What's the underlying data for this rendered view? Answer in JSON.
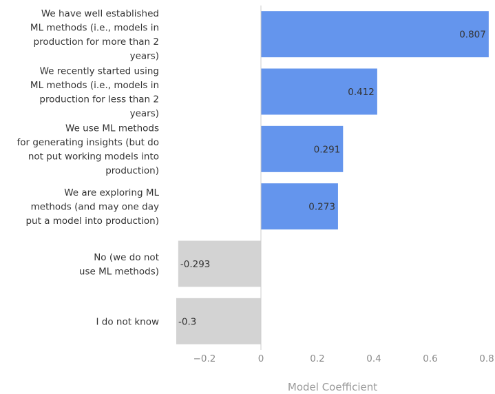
{
  "chart_data": {
    "type": "bar",
    "orientation": "horizontal",
    "categories": [
      [
        "We have well established",
        "ML methods (i.e., models in",
        "production for more than 2",
        "years)"
      ],
      [
        "We recently started using",
        "ML methods (i.e., models in",
        "production for less than 2",
        "years)"
      ],
      [
        "We use ML methods",
        "for generating insights (but do",
        "not put working models into",
        "production)"
      ],
      [
        "We are exploring ML",
        "methods (and may one day",
        "put a model into production)"
      ],
      [
        "No (we do not",
        "use ML methods)"
      ],
      [
        "I do not know"
      ]
    ],
    "values": [
      0.807,
      0.412,
      0.291,
      0.273,
      -0.293,
      -0.3
    ],
    "value_labels": [
      "0.807",
      "0.412",
      "0.291",
      "0.273",
      "-0.293",
      "-0.3"
    ],
    "xlim": [
      -0.3,
      0.8
    ],
    "xticks": [
      -0.2,
      0,
      0.2,
      0.4,
      0.6,
      0.8
    ],
    "xtick_labels": [
      "−0.2",
      "0",
      "0.2",
      "0.4",
      "0.6",
      "0.8"
    ],
    "xlabel": "Model Coefficient",
    "ylabel": "",
    "title": "",
    "grid": false,
    "colors": {
      "positive": "#6495ED",
      "negative": "#D3D3D3",
      "zero_line": "#cccccc"
    }
  }
}
